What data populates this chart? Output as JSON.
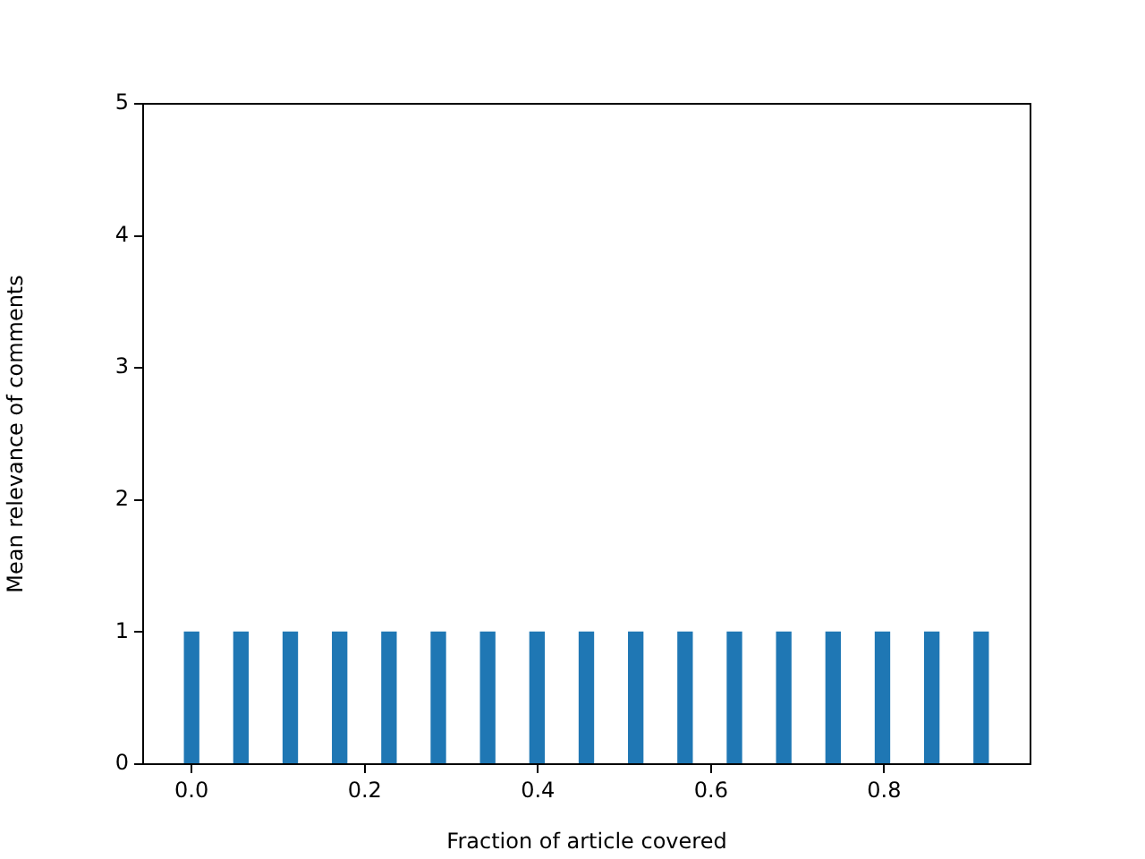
{
  "chart_data": {
    "type": "bar",
    "xlabel": "Fraction of article covered",
    "ylabel": "Mean relevance of comments",
    "x": [
      0,
      0.057,
      0.114,
      0.171,
      0.228,
      0.285,
      0.342,
      0.399,
      0.456,
      0.513,
      0.57,
      0.627,
      0.684,
      0.741,
      0.798,
      0.855,
      0.912
    ],
    "values": [
      1,
      1,
      1,
      1,
      1,
      1,
      1,
      1,
      1,
      1,
      1,
      1,
      1,
      1,
      1,
      1,
      1
    ],
    "color": "#1f77b4",
    "xlim": [
      -0.056,
      0.969
    ],
    "xticks": [
      {
        "value": 0,
        "label": "0.0"
      },
      {
        "value": 0.2,
        "label": "0.2"
      },
      {
        "value": 0.4,
        "label": "0.4"
      },
      {
        "value": 0.6,
        "label": "0.6"
      },
      {
        "value": 0.8,
        "label": "0.8"
      }
    ],
    "ylim": [
      0,
      5
    ],
    "yticks": [
      0,
      1,
      2,
      3,
      4,
      5
    ],
    "grid": false,
    "legend": false
  }
}
